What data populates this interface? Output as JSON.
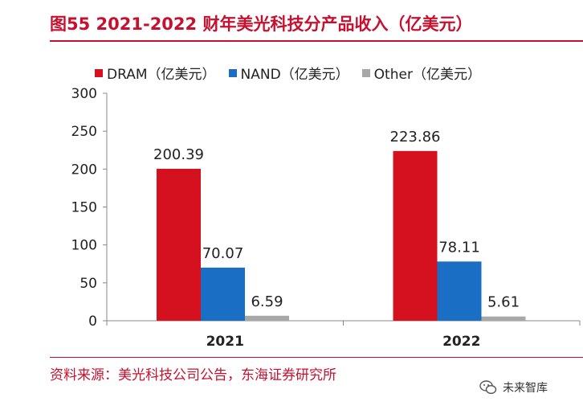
{
  "title": "图55  2021-2022 财年美光科技分产品收入（亿美元）",
  "source": "资料来源：美光科技公司公告，东海证券研究所",
  "watermark": "未来智库",
  "colors": {
    "DRAM": "#d6111f",
    "NAND": "#1a6fc4",
    "Other": "#a8a8a8",
    "accent": "#c8102e"
  },
  "chart_data": {
    "type": "bar",
    "categories": [
      "2021",
      "2022"
    ],
    "series": [
      {
        "name": "DRAM（亿美元）",
        "values": [
          200.39,
          223.86
        ]
      },
      {
        "name": "NAND（亿美元）",
        "values": [
          70.07,
          78.11
        ]
      },
      {
        "name": "Other（亿美元）",
        "values": [
          6.59,
          5.61
        ]
      }
    ],
    "data_labels": [
      [
        "200.39",
        "223.86"
      ],
      [
        "70.07",
        "78.11"
      ],
      [
        "6.59",
        "5.61"
      ]
    ],
    "ylim": [
      0,
      300
    ],
    "yticks": [
      0,
      50,
      100,
      150,
      200,
      250,
      300
    ],
    "legend": "top",
    "grid": false
  }
}
